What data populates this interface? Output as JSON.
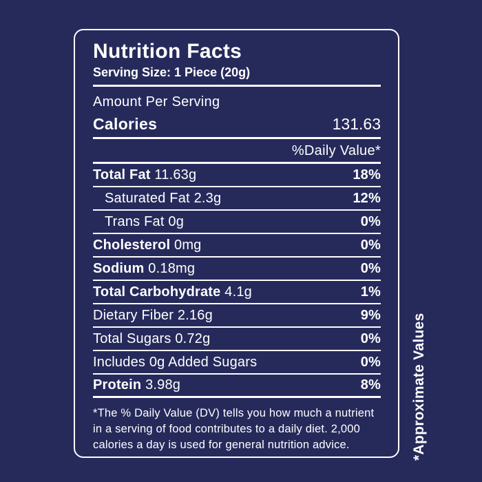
{
  "colors": {
    "background": "#262a5b",
    "text": "#ffffff",
    "border": "#ffffff"
  },
  "label": {
    "title": "Nutrition Facts",
    "serving_size": "Serving Size: 1 Piece (20g)",
    "amount_per_serving": "Amount Per Serving",
    "calories_label": "Calories",
    "calories_value": "131.63",
    "daily_value_header": "%Daily Value*",
    "rows": [
      {
        "label": "Total Fat",
        "amount": "11.63g",
        "dv": "18%"
      },
      {
        "label": "Saturated Fat",
        "amount": "2.3g",
        "dv": "12%"
      },
      {
        "label": "Trans Fat",
        "amount": "0g",
        "dv": "0%"
      },
      {
        "label": "Cholesterol",
        "amount": "0mg",
        "dv": "0%"
      },
      {
        "label": "Sodium",
        "amount": "0.18mg",
        "dv": "0%"
      },
      {
        "label": "Total Carbohydrate",
        "amount": "4.1g",
        "dv": "1%"
      },
      {
        "label": "Dietary Fiber",
        "amount": "2.16g",
        "dv": "9%"
      },
      {
        "label": "Total Sugars",
        "amount": "0.72g",
        "dv": "0%"
      },
      {
        "label": "Includes 0g Added Sugars",
        "amount": "",
        "dv": "0%"
      },
      {
        "label": "Protein",
        "amount": "3.98g",
        "dv": "8%"
      }
    ],
    "footnote": "*The % Daily Value (DV) tells you how much a nutrient in a serving of food contributes to a daily diet. 2,000 calories a day is used for general nutrition advice.",
    "side_note": "*Approximate Values"
  }
}
